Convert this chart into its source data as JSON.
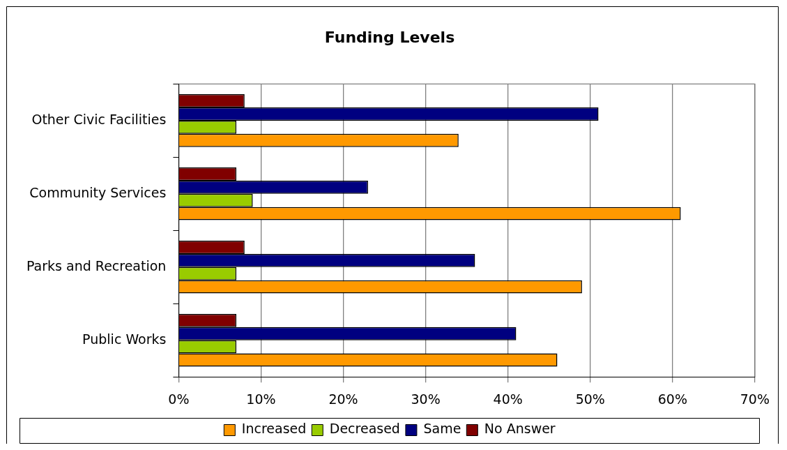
{
  "chart_data": {
    "type": "bar",
    "title": "Funding Levels",
    "orientation": "horizontal",
    "categories": [
      "Other Civic Facilities",
      "Community Services",
      "Parks and Recreation",
      "Public Works"
    ],
    "series": [
      {
        "name": "Increased",
        "color": "#ff9900",
        "values": [
          34,
          61,
          49,
          46
        ]
      },
      {
        "name": "Decreased",
        "color": "#99cc00",
        "values": [
          7,
          9,
          7,
          7
        ]
      },
      {
        "name": "Same",
        "color": "#000080",
        "values": [
          51,
          23,
          36,
          41
        ]
      },
      {
        "name": "No Answer",
        "color": "#800000",
        "values": [
          8,
          7,
          8,
          7
        ]
      }
    ],
    "xlim": [
      0,
      70
    ],
    "xticks": [
      {
        "value": 0,
        "label": "0%"
      },
      {
        "value": 10,
        "label": "10%"
      },
      {
        "value": 20,
        "label": "20%"
      },
      {
        "value": 30,
        "label": "30%"
      },
      {
        "value": 40,
        "label": "40%"
      },
      {
        "value": 50,
        "label": "50%"
      },
      {
        "value": 60,
        "label": "60%"
      },
      {
        "value": 70,
        "label": "70%"
      }
    ],
    "grid": "x",
    "legend": "bottom"
  }
}
